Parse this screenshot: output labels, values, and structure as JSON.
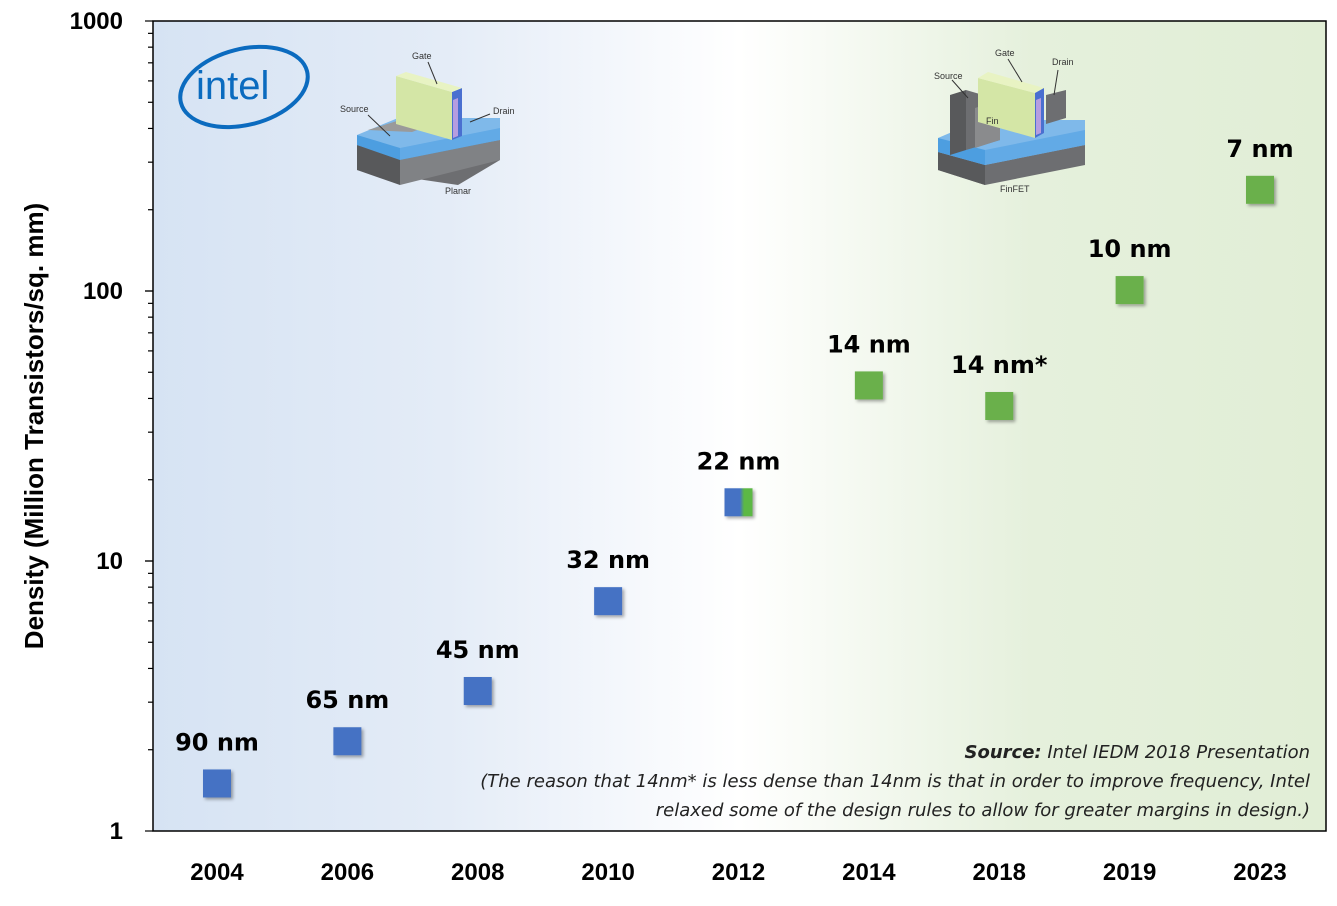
{
  "chart_data": {
    "type": "scatter",
    "ylabel": "Density (Million Transistors/sq. mm)",
    "yscale": "log",
    "ylim": [
      1,
      1000
    ],
    "y_ticks": [
      "1",
      "10",
      "100",
      "1000"
    ],
    "categories": [
      "2004",
      "2006",
      "2008",
      "2010",
      "2012",
      "2014",
      "2018",
      "2019",
      "2023"
    ],
    "points": [
      {
        "x": "2004",
        "y": 1.5,
        "label": "90 nm",
        "color": "#4472c4"
      },
      {
        "x": "2006",
        "y": 2.15,
        "label": "65 nm",
        "color": "#4472c4"
      },
      {
        "x": "2008",
        "y": 3.3,
        "label": "45 nm",
        "color": "#4472c4"
      },
      {
        "x": "2010",
        "y": 7.1,
        "label": "32 nm",
        "color": "#4472c4"
      },
      {
        "x": "2012",
        "y": 16.5,
        "label": "22 nm",
        "color": "#4472c4",
        "color2": "#5cb845"
      },
      {
        "x": "2014",
        "y": 44.7,
        "label": "14 nm",
        "color": "#6ab04c"
      },
      {
        "x": "2018",
        "y": 37.5,
        "label": "14 nm*",
        "color": "#6ab04c"
      },
      {
        "x": "2019",
        "y": 100.8,
        "label": "10 nm",
        "color": "#6ab04c"
      },
      {
        "x": "2023",
        "y": 237,
        "label": "7 nm",
        "color": "#6ab04c"
      }
    ],
    "grid": false,
    "background_left": "#dae6f4",
    "background_right": "#e2efd9"
  },
  "logo": {
    "text": "intel",
    "color": "#0b6bbf"
  },
  "diagrams": {
    "planar": {
      "caption": "Planar",
      "gate": "Gate",
      "source": "Source",
      "drain": "Drain"
    },
    "finfet": {
      "caption": "FinFET",
      "gate": "Gate",
      "source": "Source",
      "drain": "Drain",
      "fin": "Fin"
    }
  },
  "note": {
    "source_label": "Source:",
    "source_text": " Intel IEDM 2018 Presentation",
    "line2": "(The reason that 14nm* is less dense than 14nm is that in order to improve frequency, Intel",
    "line3": "relaxed some of the design rules to allow for greater margins in design.)"
  }
}
